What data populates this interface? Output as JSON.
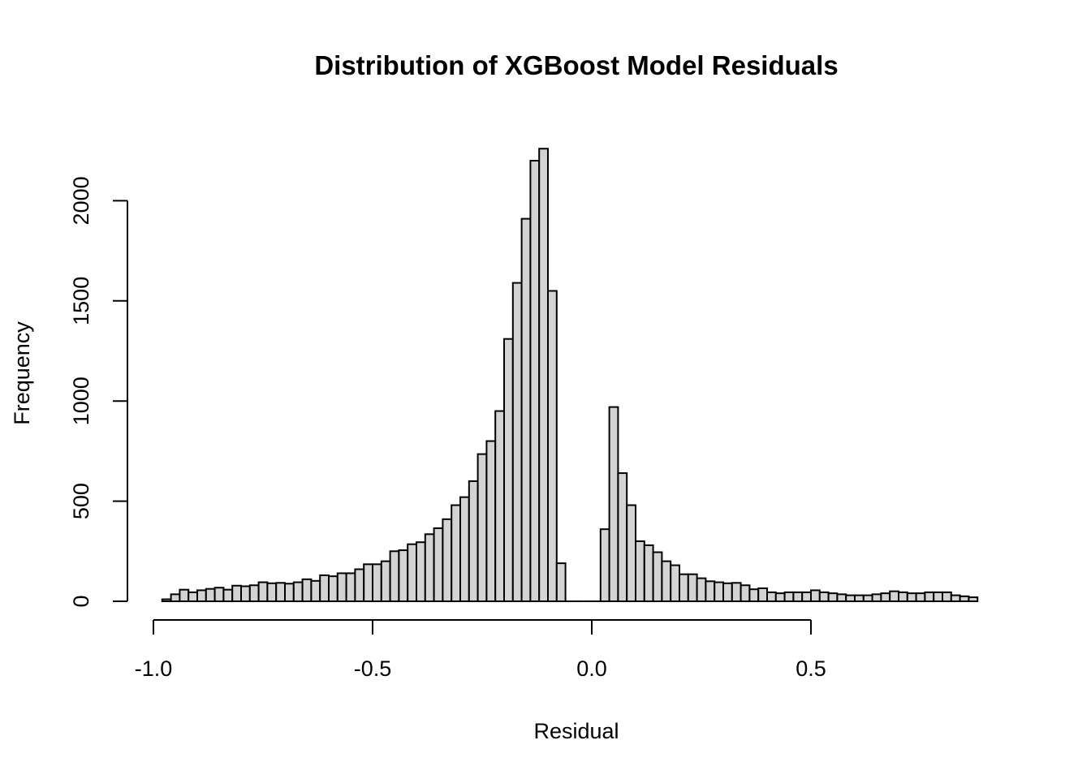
{
  "chart_data": {
    "type": "bar",
    "title": "Distribution of XGBoost Model Residuals",
    "xlabel": "Residual",
    "ylabel": "Frequency",
    "xlim": [
      -1.0,
      0.9
    ],
    "ylim": [
      0,
      2250
    ],
    "x_ticks": [
      -1.0,
      -0.5,
      0.0,
      0.5
    ],
    "x_tick_labels": [
      "-1.0",
      "-0.5",
      "0.0",
      "0.5"
    ],
    "y_ticks": [
      0,
      500,
      1000,
      1500,
      2000
    ],
    "y_tick_labels": [
      "0",
      "500",
      "1000",
      "1500",
      "2000"
    ],
    "bin_start": -0.98,
    "bin_width": 0.02,
    "values": [
      10,
      35,
      58,
      45,
      55,
      62,
      68,
      58,
      78,
      75,
      80,
      95,
      90,
      92,
      88,
      95,
      110,
      102,
      130,
      125,
      140,
      140,
      160,
      185,
      185,
      200,
      250,
      255,
      285,
      295,
      335,
      365,
      410,
      480,
      520,
      600,
      735,
      800,
      950,
      1310,
      1590,
      1910,
      2200,
      2260,
      1550,
      190,
      0,
      0,
      0,
      0,
      360,
      970,
      640,
      480,
      300,
      280,
      245,
      200,
      180,
      135,
      135,
      115,
      100,
      95,
      90,
      92,
      80,
      60,
      65,
      45,
      40,
      45,
      45,
      45,
      55,
      45,
      40,
      35,
      30,
      30,
      30,
      35,
      40,
      50,
      45,
      40,
      40,
      45,
      45,
      45,
      30,
      25,
      20
    ],
    "grid": false,
    "legend": "none",
    "bar_color": "#d3d3d3",
    "edge_color": "#000000"
  }
}
